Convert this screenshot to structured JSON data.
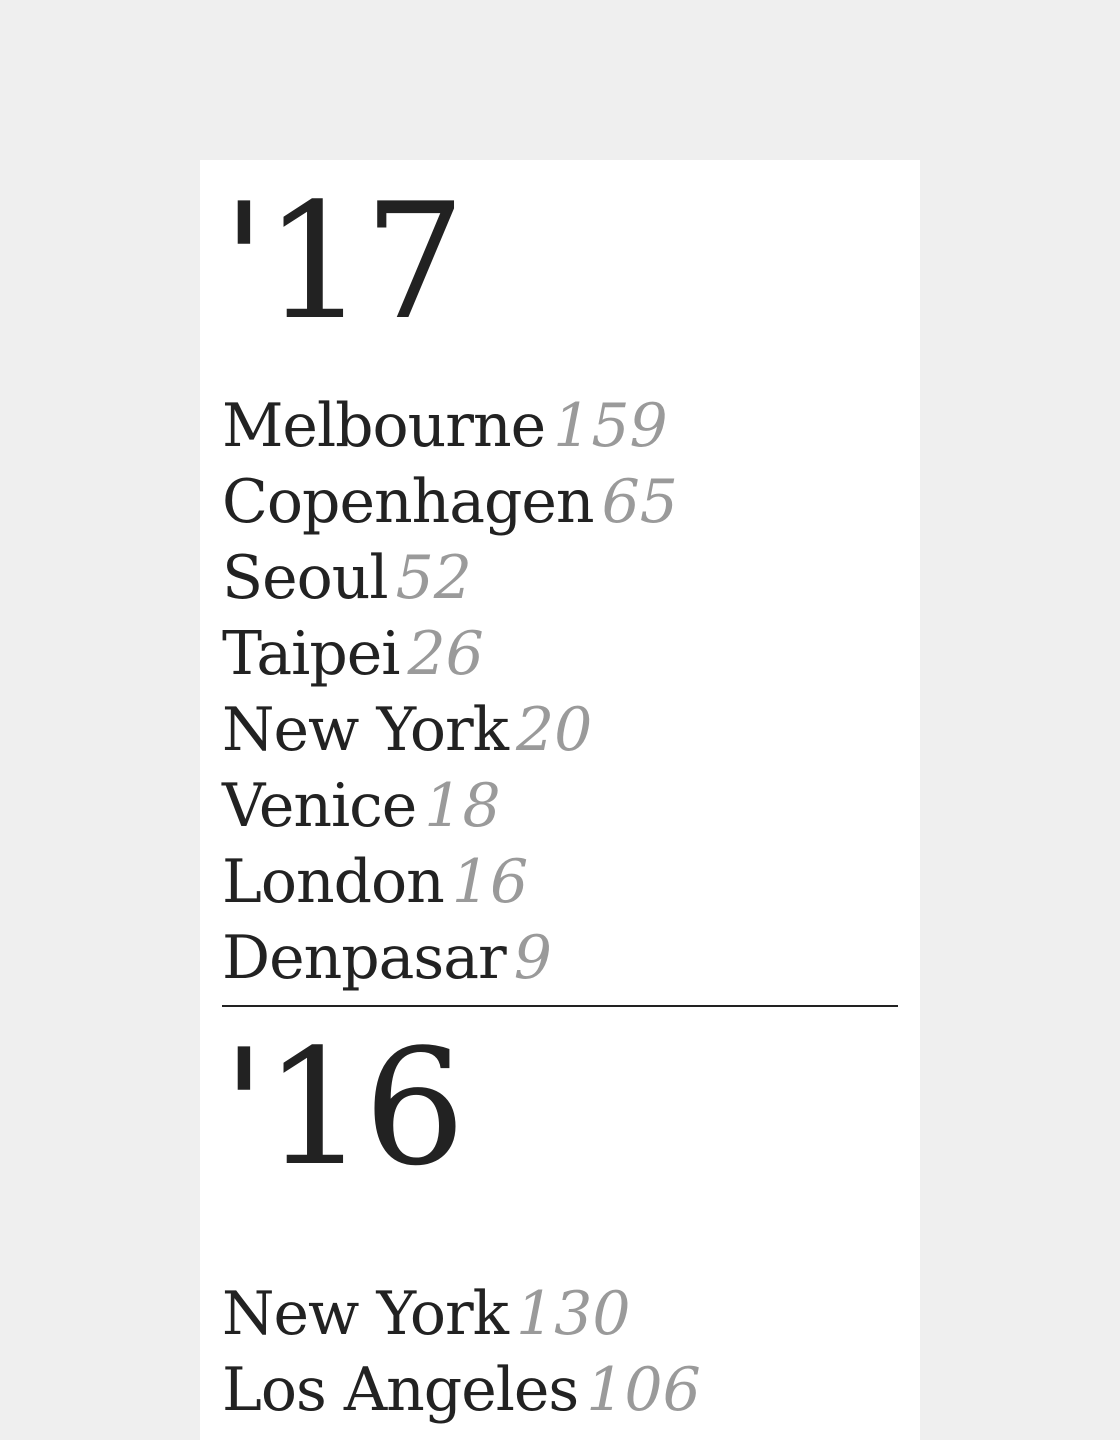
{
  "sections": [
    {
      "year_label": "'17",
      "cities": [
        {
          "name": "Melbourne",
          "count": "159"
        },
        {
          "name": "Copenhagen",
          "count": "65"
        },
        {
          "name": "Seoul",
          "count": "52"
        },
        {
          "name": "Taipei",
          "count": "26"
        },
        {
          "name": "New York",
          "count": "20"
        },
        {
          "name": "Venice",
          "count": "18"
        },
        {
          "name": "London",
          "count": "16"
        },
        {
          "name": "Denpasar",
          "count": "9"
        }
      ]
    },
    {
      "year_label": "'16",
      "cities": [
        {
          "name": "New York",
          "count": "130"
        },
        {
          "name": "Los Angeles",
          "count": "106"
        }
      ]
    }
  ],
  "colors": {
    "page_background": "#efefef",
    "panel_background": "#ffffff",
    "text": "#222222",
    "count_text": "#9a9a9a",
    "divider": "#222222"
  }
}
